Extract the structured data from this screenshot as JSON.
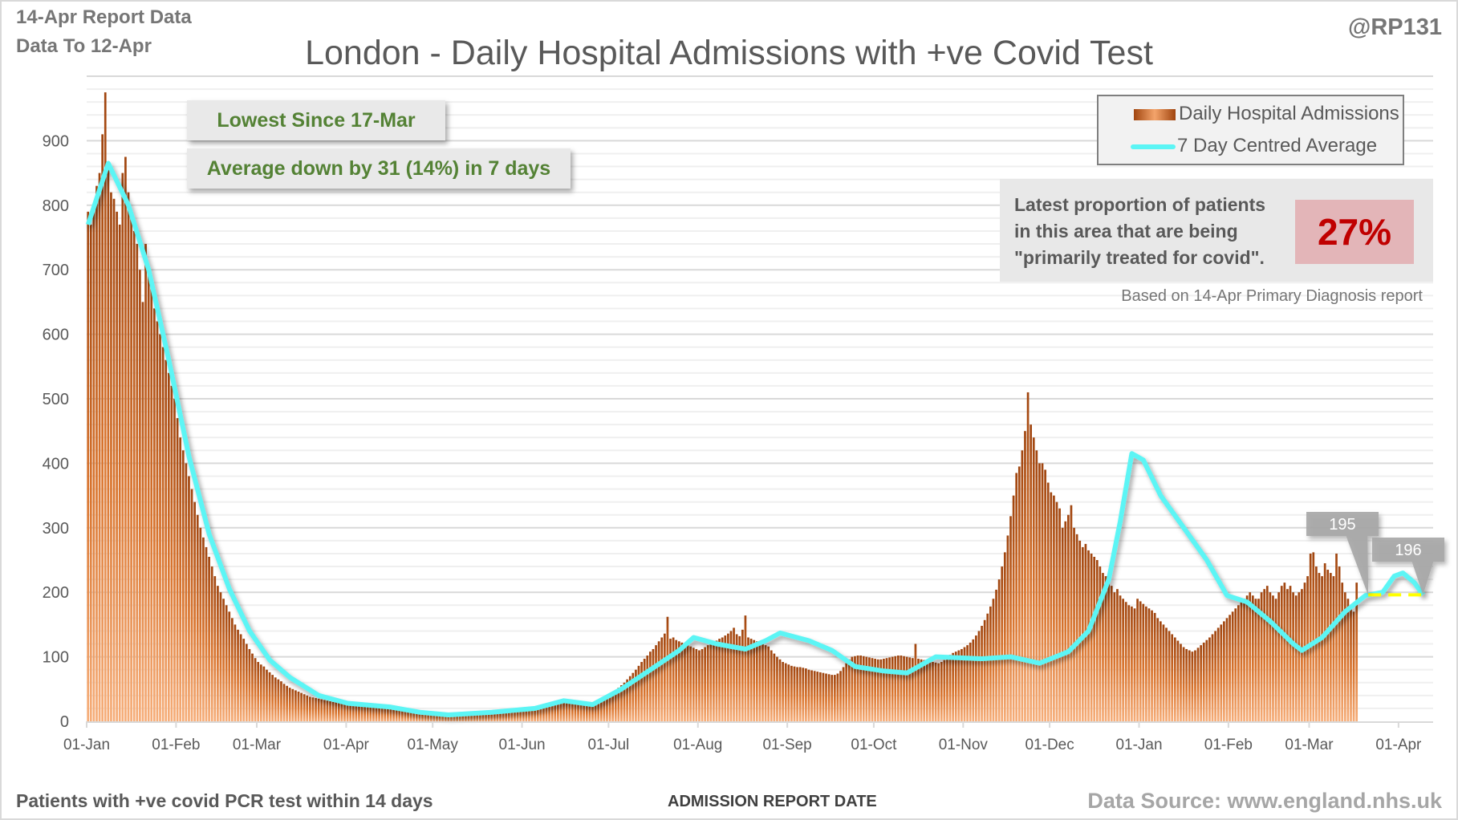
{
  "header": {
    "report_line": "14-Apr Report Data",
    "data_to_line": "Data To 12-Apr",
    "author": "@RP131"
  },
  "colors": {
    "bar_dark": "#a0450f",
    "bar_light": "#f4a46b",
    "average_line": "#5cf5f5",
    "reference_line": "#ffff00",
    "callout_text": "#548235",
    "proportion_value": "#c00000",
    "proportion_bg": "#e3b5b8"
  },
  "callouts": {
    "lowest_since": "Lowest Since 17-Mar",
    "average_change": "Average down by 31 (14%) in 7 days"
  },
  "proportion": {
    "text_line1": "Latest proportion of patients",
    "text_line2": "in this area that are being",
    "text_line3": "\"primarily treated for covid\".",
    "value": "27%",
    "note": "Based on 14-Apr Primary Diagnosis report"
  },
  "footer": {
    "left": "Patients with +ve covid PCR test within 14 days",
    "source": "Data Source: www.england.nhs.uk"
  },
  "chart_data": {
    "type": "bar",
    "title": "London - Daily Hospital Admissions with +ve Covid Test",
    "xlabel": "ADMISSION REPORT DATE",
    "ylabel": "",
    "ylim": [
      0,
      1000
    ],
    "yticks": [
      0,
      100,
      200,
      300,
      400,
      500,
      600,
      700,
      800,
      900
    ],
    "grid": true,
    "legend_position": "top-right",
    "start_date": "01-Jan",
    "end_date": "12-Apr",
    "num_days": 467,
    "x_tick_labels": [
      "01-Jan",
      "01-Feb",
      "01-Mar",
      "01-Apr",
      "01-May",
      "01-Jun",
      "01-Jul",
      "01-Aug",
      "01-Sep",
      "01-Oct",
      "01-Nov",
      "01-Dec",
      "01-Jan",
      "01-Feb",
      "01-Mar",
      "01-Apr"
    ],
    "x_tick_day_index": [
      0,
      31,
      59,
      90,
      120,
      151,
      181,
      212,
      243,
      273,
      304,
      334,
      365,
      396,
      424,
      455
    ],
    "series": [
      {
        "name": "Daily Hospital Admissions",
        "kind": "bar",
        "values": [
          790,
          770,
          800,
          830,
          850,
          910,
          975,
          860,
          820,
          810,
          790,
          770,
          850,
          875,
          820,
          780,
          760,
          740,
          700,
          650,
          740,
          700,
          680,
          640,
          620,
          600,
          580,
          560,
          540,
          520,
          500,
          470,
          440,
          420,
          400,
          380,
          360,
          340,
          320,
          300,
          285,
          270,
          255,
          240,
          225,
          210,
          200,
          190,
          180,
          170,
          160,
          150,
          142,
          135,
          128,
          120,
          112,
          105,
          98,
          92,
          88,
          85,
          80,
          76,
          72,
          68,
          65,
          62,
          58,
          55,
          52,
          50,
          48,
          46,
          44,
          42,
          40,
          38,
          37,
          36,
          35,
          34,
          33,
          32,
          31,
          30,
          30,
          29,
          28,
          28,
          27,
          27,
          26,
          26,
          25,
          25,
          24,
          24,
          23,
          23,
          22,
          22,
          22,
          21,
          21,
          20,
          20,
          19,
          19,
          18,
          18,
          17,
          17,
          16,
          16,
          15,
          15,
          15,
          14,
          14,
          14,
          13,
          13,
          13,
          12,
          12,
          12,
          12,
          12,
          12,
          12,
          13,
          13,
          13,
          13,
          14,
          14,
          14,
          15,
          15,
          15,
          16,
          16,
          16,
          17,
          17,
          18,
          18,
          19,
          19,
          20,
          20,
          21,
          22,
          22,
          23,
          24,
          25,
          26,
          27,
          28,
          28,
          29,
          30,
          31,
          31,
          32,
          32,
          31,
          30,
          30,
          29,
          28,
          27,
          26,
          26,
          27,
          29,
          31,
          34,
          37,
          40,
          44,
          48,
          52,
          56,
          60,
          65,
          70,
          75,
          80,
          86,
          92,
          97,
          102,
          108,
          112,
          118,
          124,
          130,
          136,
          162,
          128,
          130,
          126,
          124,
          122,
          120,
          118,
          116,
          114,
          112,
          110,
          112,
          115,
          118,
          120,
          122,
          125,
          128,
          130,
          133,
          136,
          140,
          145,
          135,
          132,
          142,
          164,
          130,
          128,
          126,
          124,
          122,
          120,
          118,
          116,
          110,
          105,
          100,
          96,
          92,
          90,
          88,
          86,
          85,
          84,
          84,
          83,
          82,
          80,
          79,
          78,
          77,
          76,
          75,
          74,
          73,
          72,
          72,
          74,
          78,
          84,
          90,
          96,
          100,
          101,
          102,
          102,
          101,
          100,
          99,
          98,
          97,
          96,
          96,
          97,
          98,
          99,
          100,
          101,
          102,
          102,
          101,
          100,
          99,
          98,
          120,
          97,
          96,
          95,
          94,
          93,
          92,
          91,
          90,
          92,
          95,
          99,
          103,
          106,
          108,
          110,
          112,
          115,
          118,
          122,
          127,
          133,
          140,
          148,
          157,
          167,
          178,
          190,
          204,
          220,
          240,
          262,
          288,
          318,
          350,
          385,
          395,
          420,
          450,
          510,
          460,
          440,
          420,
          400,
          400,
          390,
          370,
          355,
          350,
          340,
          330,
          300,
          310,
          320,
          335,
          300,
          290,
          280,
          270,
          275,
          265,
          260,
          255,
          250,
          240,
          230,
          225,
          220,
          210,
          200,
          205,
          195,
          190,
          185,
          180,
          178,
          175,
          190,
          186,
          182,
          178,
          175,
          172,
          168,
          160,
          155,
          150,
          145,
          140,
          135,
          130,
          125,
          120,
          115,
          112,
          110,
          108,
          110,
          114,
          118,
          122,
          126,
          130,
          135,
          140,
          145,
          150,
          155,
          160,
          165,
          170,
          175,
          180,
          185,
          190,
          195,
          200,
          195,
          190,
          190,
          200,
          205,
          210,
          200,
          195,
          190,
          200,
          210,
          215,
          205,
          210,
          200,
          195,
          200,
          205,
          215,
          225,
          260,
          262,
          240,
          230,
          225,
          245,
          235,
          230,
          225,
          260,
          240,
          215,
          200,
          190,
          180,
          170,
          215
        ]
      },
      {
        "name": "7 Day Centred Average",
        "kind": "line",
        "anchors": [
          {
            "day": 0,
            "value": 770
          },
          {
            "day": 7,
            "value": 865
          },
          {
            "day": 14,
            "value": 800
          },
          {
            "day": 21,
            "value": 700
          },
          {
            "day": 28,
            "value": 560
          },
          {
            "day": 35,
            "value": 410
          },
          {
            "day": 42,
            "value": 290
          },
          {
            "day": 49,
            "value": 205
          },
          {
            "day": 56,
            "value": 140
          },
          {
            "day": 63,
            "value": 95
          },
          {
            "day": 70,
            "value": 68
          },
          {
            "day": 80,
            "value": 40
          },
          {
            "day": 90,
            "value": 28
          },
          {
            "day": 105,
            "value": 22
          },
          {
            "day": 115,
            "value": 14
          },
          {
            "day": 125,
            "value": 10
          },
          {
            "day": 140,
            "value": 14
          },
          {
            "day": 155,
            "value": 20
          },
          {
            "day": 165,
            "value": 32
          },
          {
            "day": 175,
            "value": 26
          },
          {
            "day": 185,
            "value": 50
          },
          {
            "day": 195,
            "value": 80
          },
          {
            "day": 205,
            "value": 110
          },
          {
            "day": 210,
            "value": 130
          },
          {
            "day": 218,
            "value": 120
          },
          {
            "day": 228,
            "value": 112
          },
          {
            "day": 235,
            "value": 125
          },
          {
            "day": 240,
            "value": 137
          },
          {
            "day": 250,
            "value": 125
          },
          {
            "day": 258,
            "value": 110
          },
          {
            "day": 266,
            "value": 85
          },
          {
            "day": 276,
            "value": 78
          },
          {
            "day": 284,
            "value": 75
          },
          {
            "day": 294,
            "value": 100
          },
          {
            "day": 310,
            "value": 97
          },
          {
            "day": 320,
            "value": 100
          },
          {
            "day": 330,
            "value": 90
          },
          {
            "day": 340,
            "value": 108
          },
          {
            "day": 347,
            "value": 140
          },
          {
            "day": 354,
            "value": 220
          },
          {
            "day": 358,
            "value": 310
          },
          {
            "day": 362,
            "value": 415
          },
          {
            "day": 366,
            "value": 405
          },
          {
            "day": 372,
            "value": 350
          },
          {
            "day": 380,
            "value": 300
          },
          {
            "day": 388,
            "value": 250
          },
          {
            "day": 395,
            "value": 195
          },
          {
            "day": 402,
            "value": 185
          },
          {
            "day": 410,
            "value": 155
          },
          {
            "day": 418,
            "value": 120
          },
          {
            "day": 421,
            "value": 110
          },
          {
            "day": 428,
            "value": 130
          },
          {
            "day": 436,
            "value": 170
          },
          {
            "day": 443,
            "value": 195
          },
          {
            "day": 449,
            "value": 200
          },
          {
            "day": 453,
            "value": 225
          },
          {
            "day": 456,
            "value": 230
          },
          {
            "day": 460,
            "value": 215
          },
          {
            "day": 463,
            "value": 196
          }
        ]
      }
    ],
    "annotations": [
      {
        "label": "195",
        "day": 444,
        "value": 195
      },
      {
        "label": "196",
        "day": 463,
        "value": 196
      }
    ],
    "reference_line": {
      "value": 196,
      "from_day": 444,
      "to_day": 463,
      "style": "dashed"
    }
  }
}
